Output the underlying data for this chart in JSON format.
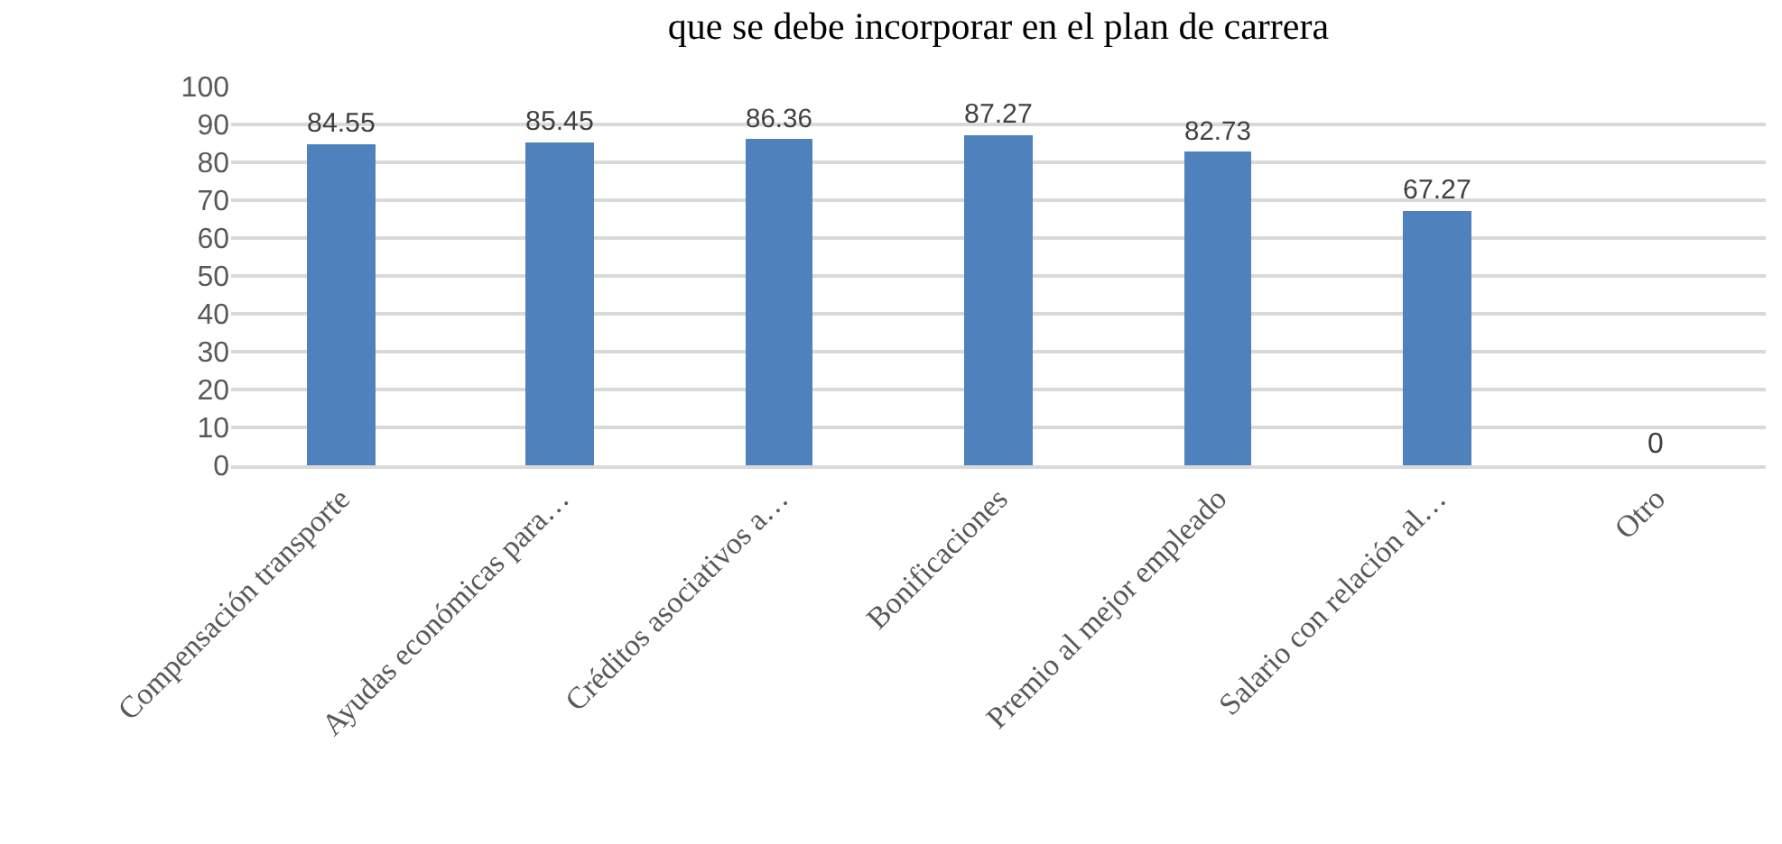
{
  "chart_data": {
    "type": "bar",
    "title": "que se debe incorporar en el plan de carrera",
    "categories": [
      "Compensación transporte",
      "Ayudas económicas para…",
      "Créditos asociativos a…",
      "Bonificaciones",
      "Premio al mejor empleado",
      "Salario con relación al…",
      "Otro"
    ],
    "values": [
      84.55,
      85.45,
      86.36,
      87.27,
      82.73,
      67.27,
      0
    ],
    "color": "#4f81bd",
    "ylim": [
      0,
      100
    ],
    "yticks": [
      0,
      10,
      20,
      30,
      40,
      50,
      60,
      70,
      80,
      90,
      100
    ],
    "grid": "y",
    "data_labels": true
  }
}
